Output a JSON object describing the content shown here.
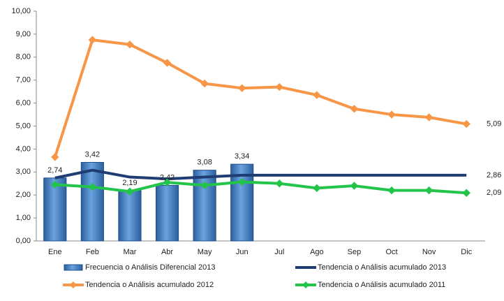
{
  "chart_data": {
    "type": "combo",
    "categories": [
      "Ene",
      "Feb",
      "Mar",
      "Abr",
      "May",
      "Jun",
      "Jul",
      "Ago",
      "Sep",
      "Oct",
      "Nov",
      "Dic"
    ],
    "series": [
      {
        "name": "Frecuencia o Análisis Diferencial 2013",
        "type": "bar",
        "color": "#4a86c8",
        "values": [
          2.74,
          3.42,
          2.19,
          2.42,
          3.08,
          3.34,
          null,
          null,
          null,
          null,
          null,
          null
        ],
        "value_labels": [
          "2,74",
          "3,42",
          "2,19",
          "2,42",
          "3,08",
          "3,34",
          null,
          null,
          null,
          null,
          null,
          null
        ]
      },
      {
        "name": "Tendencia o Análisis acumulado 2013",
        "type": "line",
        "color": "#1f3d73",
        "values": [
          2.74,
          3.08,
          2.78,
          2.7,
          2.78,
          2.86,
          2.86,
          2.86,
          2.86,
          2.86,
          2.86,
          2.86
        ],
        "value_labels": [
          null,
          null,
          null,
          null,
          null,
          null,
          null,
          null,
          null,
          null,
          null,
          "2,86"
        ]
      },
      {
        "name": "Tendencia o Análisis acumulado 2012",
        "type": "line",
        "color": "#f79646",
        "marker": "diamond",
        "values": [
          3.65,
          8.75,
          8.55,
          7.75,
          6.85,
          6.65,
          6.7,
          6.35,
          5.75,
          5.5,
          5.38,
          5.09
        ],
        "value_labels": [
          null,
          null,
          null,
          null,
          null,
          null,
          null,
          null,
          null,
          null,
          null,
          "5,09"
        ]
      },
      {
        "name": "Tendencia o Análisis acumulado 2011",
        "type": "line",
        "color": "#22c44a",
        "marker": "diamond",
        "values": [
          2.45,
          2.35,
          2.15,
          2.55,
          2.42,
          2.57,
          2.5,
          2.3,
          2.4,
          2.2,
          2.2,
          2.09
        ],
        "value_labels": [
          null,
          null,
          null,
          null,
          null,
          null,
          null,
          null,
          null,
          null,
          null,
          "2,09"
        ]
      }
    ],
    "ylim": [
      0,
      10
    ],
    "yticks": [
      {
        "value": 0,
        "label": "0,00"
      },
      {
        "value": 1,
        "label": "1,00"
      },
      {
        "value": 2,
        "label": "2,00"
      },
      {
        "value": 3,
        "label": "3,00"
      },
      {
        "value": 4,
        "label": "4,00"
      },
      {
        "value": 5,
        "label": "5,00"
      },
      {
        "value": 6,
        "label": "6,00"
      },
      {
        "value": 7,
        "label": "7,00"
      },
      {
        "value": 8,
        "label": "8,00"
      },
      {
        "value": 9,
        "label": "9,00"
      },
      {
        "value": 10,
        "label": "10,00"
      }
    ],
    "grid": false,
    "legend": "bottom"
  }
}
